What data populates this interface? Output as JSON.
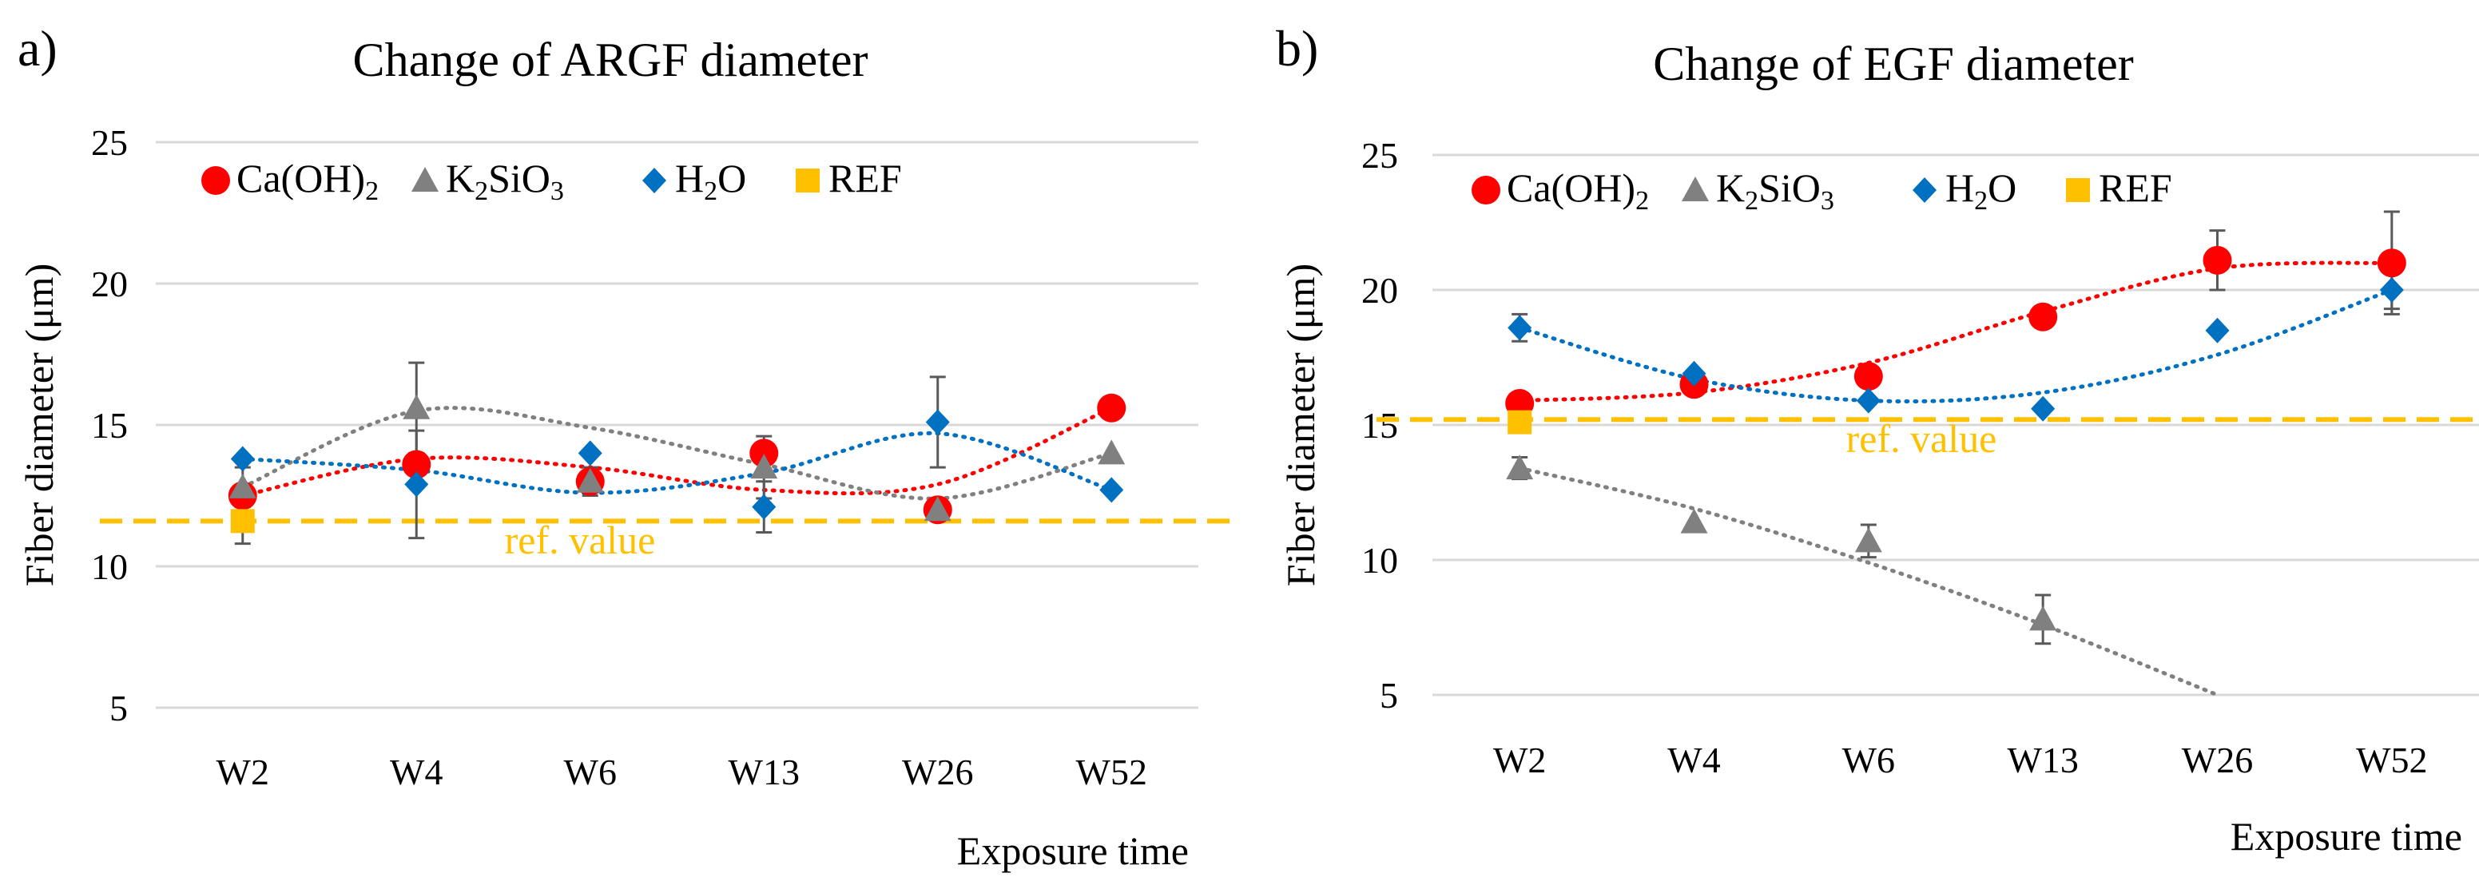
{
  "chart_data": [
    {
      "panel_label": "a)",
      "type": "scatter",
      "title": "Change of ARGF diameter",
      "xlabel": "Exposure time",
      "ylabel": "Fiber diameter (μm)",
      "categories": [
        "W2",
        "W4",
        "W6",
        "W13",
        "W26",
        "W52"
      ],
      "ylim": [
        5,
        25
      ],
      "yticks": [
        5,
        10,
        15,
        20,
        25
      ],
      "grid": true,
      "legend_position": "top-left",
      "series": [
        {
          "name": "Ca(OH)2",
          "label_main": "Ca(OH)",
          "label_sub": "2",
          "color": "#ff0000",
          "marker": "circle",
          "values": [
            12.5,
            13.6,
            13.0,
            14.0,
            12.0,
            15.6
          ],
          "errors": [
            null,
            null,
            null,
            null,
            null,
            null
          ],
          "trend": [
            12.5,
            13.8,
            13.5,
            12.7,
            12.9,
            15.6
          ]
        },
        {
          "name": "K2SiO3",
          "label_main1": "K",
          "label_sub1": "2",
          "label_main2": "SiO",
          "label_sub2": "3",
          "color": "#808080",
          "marker": "triangle",
          "values": [
            12.8,
            15.6,
            13.0,
            13.5,
            12.0,
            14.0
          ],
          "errors": [
            0.7,
            1.6,
            0.5,
            1.1,
            null,
            null
          ],
          "trend": [
            12.8,
            15.5,
            14.9,
            13.6,
            12.4,
            14.0
          ]
        },
        {
          "name": "H2O",
          "label_main": "H",
          "label_sub": "2",
          "label_main2": "O",
          "color": "#0070c0",
          "marker": "diamond",
          "values": [
            13.8,
            12.9,
            14.0,
            12.1,
            15.1,
            12.7
          ],
          "errors": [
            null,
            1.9,
            null,
            0.9,
            1.6,
            null
          ],
          "trend": [
            13.8,
            13.4,
            12.6,
            13.3,
            14.7,
            12.7
          ]
        },
        {
          "name": "REF",
          "color": "#ffc000",
          "marker": "square",
          "values": [
            11.6,
            null,
            null,
            null,
            null,
            null
          ],
          "errors": [
            0.8,
            null,
            null,
            null,
            null,
            null
          ]
        }
      ],
      "ref_line": {
        "value": 11.6,
        "color": "#ffc000",
        "label": "ref. value"
      }
    },
    {
      "panel_label": "b)",
      "type": "scatter",
      "title": "Change of EGF diameter",
      "xlabel": "Exposure time",
      "ylabel": "Fiber diameter (μm)",
      "categories": [
        "W2",
        "W4",
        "W6",
        "W13",
        "W26",
        "W52"
      ],
      "ylim": [
        5,
        25
      ],
      "yticks": [
        5,
        10,
        15,
        20,
        25
      ],
      "grid": true,
      "legend_position": "top-left",
      "series": [
        {
          "name": "Ca(OH)2",
          "label_main": "Ca(OH)",
          "label_sub": "2",
          "color": "#ff0000",
          "marker": "circle",
          "values": [
            15.8,
            16.5,
            16.8,
            19.0,
            21.1,
            21.0
          ],
          "errors": [
            null,
            null,
            null,
            null,
            1.1,
            1.9
          ],
          "trend": [
            15.9,
            16.2,
            17.3,
            19.2,
            20.8,
            21.0
          ]
        },
        {
          "name": "K2SiO3",
          "label_main1": "K",
          "label_sub1": "2",
          "label_main2": "SiO",
          "label_sub2": "3",
          "color": "#808080",
          "marker": "triangle",
          "values": [
            13.4,
            11.4,
            10.7,
            7.8,
            null,
            null
          ],
          "errors": [
            0.4,
            null,
            0.6,
            0.9,
            null,
            null
          ],
          "trend": [
            13.4,
            11.9,
            9.9,
            7.6,
            5.0,
            null
          ]
        },
        {
          "name": "H2O",
          "label_main": "H",
          "label_sub": "2",
          "label_main2": "O",
          "color": "#0070c0",
          "marker": "diamond",
          "values": [
            18.6,
            16.9,
            15.9,
            15.6,
            18.5,
            20.0
          ],
          "errors": [
            0.5,
            null,
            null,
            null,
            null,
            0.7
          ],
          "trend": [
            18.6,
            16.7,
            15.9,
            16.2,
            17.6,
            20.0
          ]
        },
        {
          "name": "REF",
          "color": "#ffc000",
          "marker": "square",
          "values": [
            15.1,
            null,
            null,
            null,
            null,
            null
          ],
          "errors": [
            null,
            null,
            null,
            null,
            null,
            null
          ]
        }
      ],
      "ref_line": {
        "value": 15.2,
        "color": "#ffc000",
        "label": "ref. value"
      }
    }
  ]
}
